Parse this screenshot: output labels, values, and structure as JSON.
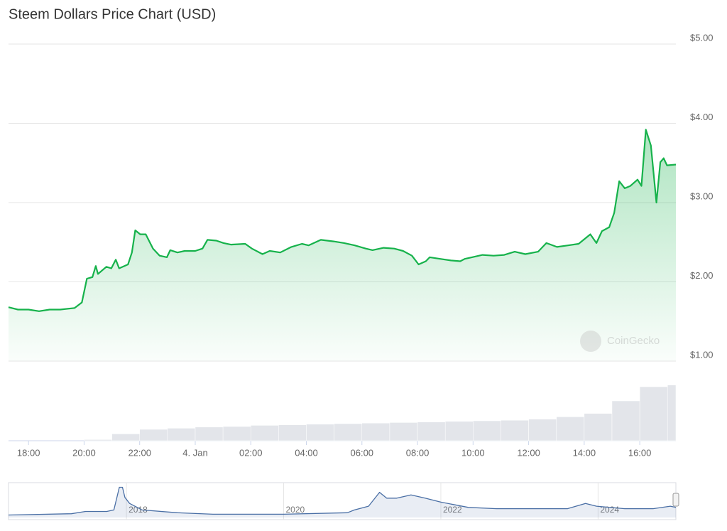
{
  "chart_data": [
    {
      "type": "line",
      "title": "Steem Dollars Price Chart (USD)",
      "watermark": "CoinGecko",
      "grid": true,
      "xlim": [
        17.28,
        41.3
      ],
      "xticks": [
        {
          "value": 18,
          "label": "18:00"
        },
        {
          "value": 20,
          "label": "20:00"
        },
        {
          "value": 22,
          "label": "22:00"
        },
        {
          "value": 24,
          "label": "4. Jan"
        },
        {
          "value": 26,
          "label": "02:00"
        },
        {
          "value": 28,
          "label": "04:00"
        },
        {
          "value": 30,
          "label": "06:00"
        },
        {
          "value": 32,
          "label": "08:00"
        },
        {
          "value": 34,
          "label": "10:00"
        },
        {
          "value": 36,
          "label": "12:00"
        },
        {
          "value": 38,
          "label": "14:00"
        },
        {
          "value": 40,
          "label": "16:00"
        }
      ],
      "ylim": [
        1,
        5
      ],
      "yticks": [
        {
          "value": 1,
          "label": "$1.00"
        },
        {
          "value": 2,
          "label": "$2.00"
        },
        {
          "value": 3,
          "label": "$3.00"
        },
        {
          "value": 4,
          "label": "$4.00"
        },
        {
          "value": 5,
          "label": "$5.00"
        }
      ],
      "series": [
        {
          "color": "#16b24b",
          "x": [
            17.28,
            17.62,
            18,
            18.38,
            18.76,
            19.14,
            19.66,
            19.92,
            20.1,
            20.3,
            20.42,
            20.5,
            20.8,
            20.98,
            21.14,
            21.26,
            21.58,
            21.72,
            21.84,
            22.02,
            22.22,
            22.48,
            22.72,
            22.98,
            23.1,
            23.36,
            23.62,
            24,
            24.26,
            24.44,
            24.76,
            25.02,
            25.28,
            25.8,
            26.04,
            26.42,
            26.68,
            27.06,
            27.46,
            27.84,
            28.08,
            28.52,
            28.98,
            29.36,
            29.74,
            30.14,
            30.38,
            30.78,
            31.16,
            31.48,
            31.8,
            32.04,
            32.3,
            32.44,
            32.82,
            33.2,
            33.54,
            33.7,
            33.96,
            34.34,
            34.74,
            35.12,
            35.5,
            35.88,
            36.34,
            36.64,
            37.02,
            37.42,
            37.8,
            38.22,
            38.44,
            38.64,
            38.9,
            39.08,
            39.26,
            39.46,
            39.66,
            39.92,
            40.06,
            40.22,
            40.4,
            40.6,
            40.74,
            40.86,
            40.98,
            41.3
          ],
          "values": [
            1.68,
            1.65,
            1.65,
            1.63,
            1.65,
            1.65,
            1.67,
            1.74,
            2.04,
            2.06,
            2.2,
            2.1,
            2.19,
            2.17,
            2.28,
            2.17,
            2.22,
            2.37,
            2.65,
            2.6,
            2.6,
            2.42,
            2.33,
            2.31,
            2.4,
            2.37,
            2.39,
            2.39,
            2.42,
            2.53,
            2.52,
            2.49,
            2.47,
            2.48,
            2.42,
            2.35,
            2.39,
            2.37,
            2.44,
            2.48,
            2.46,
            2.53,
            2.51,
            2.49,
            2.46,
            2.42,
            2.4,
            2.43,
            2.42,
            2.39,
            2.33,
            2.22,
            2.26,
            2.31,
            2.29,
            2.27,
            2.26,
            2.29,
            2.31,
            2.34,
            2.33,
            2.34,
            2.38,
            2.35,
            2.38,
            2.49,
            2.44,
            2.46,
            2.48,
            2.6,
            2.49,
            2.64,
            2.69,
            2.87,
            3.27,
            3.18,
            3.21,
            3.29,
            3.21,
            3.92,
            3.72,
            3.0,
            3.51,
            3.56,
            3.47,
            3.48
          ]
        }
      ]
    },
    {
      "type": "bar",
      "color": "#e3e5ea",
      "ylim": [
        0,
        100
      ],
      "x": [
        20,
        21,
        22,
        23,
        24,
        25,
        26,
        27,
        28,
        29,
        30,
        31,
        32,
        33,
        34,
        35,
        36,
        37,
        38,
        39,
        40,
        41
      ],
      "values": [
        2,
        12,
        20,
        22,
        24,
        25,
        27,
        28,
        29,
        30,
        31,
        32,
        33,
        34,
        35,
        36,
        38,
        42,
        48,
        70,
        95,
        98
      ]
    },
    {
      "type": "line",
      "color": "#4a6fa5",
      "xlim": [
        2016.5,
        2024.99
      ],
      "ylim": [
        0,
        13
      ],
      "xticks": [
        2018,
        2020,
        2022,
        2024
      ],
      "series": [
        {
          "x": [
            2016.5,
            2017.3,
            2017.48,
            2017.75,
            2017.84,
            2017.91,
            2017.95,
            2017.98,
            2018.04,
            2018.2,
            2018.65,
            2019.1,
            2020.0,
            2020.81,
            2020.9,
            2021.08,
            2021.22,
            2021.31,
            2021.44,
            2021.62,
            2021.8,
            2022.0,
            2022.35,
            2022.71,
            2023.25,
            2023.61,
            2023.84,
            2023.98,
            2024.34,
            2024.7,
            2024.92,
            2024.99
          ],
          "values": [
            1.0,
            1.5,
            2.4,
            2.4,
            3,
            12,
            12,
            8,
            5.6,
            3,
            1.9,
            1.3,
            1.3,
            1.9,
            3,
            4.5,
            10,
            7.7,
            7.7,
            9,
            7.7,
            6.1,
            4,
            3.5,
            3.5,
            3.5,
            5.6,
            4.5,
            3.5,
            3.5,
            4.5,
            4
          ]
        }
      ]
    }
  ]
}
